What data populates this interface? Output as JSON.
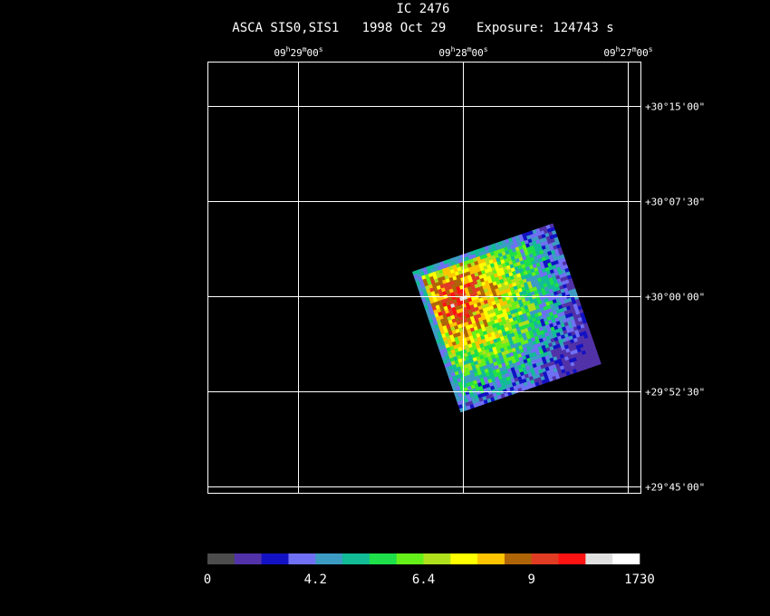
{
  "header": {
    "title": "IC 2476",
    "subtitle": "ASCA SIS0,SIS1   1998 Oct 29    Exposure: 124743 s"
  },
  "ra_labels": [
    [
      "09",
      "h",
      "29",
      "m",
      "00",
      "s"
    ],
    [
      "09",
      "h",
      "28",
      "m",
      "00",
      "s"
    ],
    [
      "09",
      "h",
      "27",
      "m",
      "00",
      "s"
    ]
  ],
  "dec_labels": [
    "+30°15'00\"",
    "+30°07'30\"",
    "+30°00'00\"",
    "+29°52'30\"",
    "+29°45'00\""
  ],
  "colorbar": {
    "colors": [
      "#4c4c4c",
      "#5232a8",
      "#1212c4",
      "#7070f4",
      "#3c9cc4",
      "#12bc96",
      "#1ee04a",
      "#66f01a",
      "#b0e01c",
      "#ffff00",
      "#ffc400",
      "#b06408",
      "#e03c24",
      "#ff1212",
      "#e0e0e0",
      "#ffffff"
    ],
    "labels": [
      "0",
      "4.2",
      "6.4",
      "9",
      "1730"
    ]
  }
}
